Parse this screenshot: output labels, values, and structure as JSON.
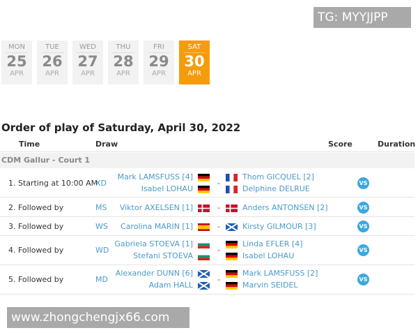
{
  "watermarks": {
    "top": "TG: MYYJJPP",
    "bottom": "www.zhongchengjx66.com"
  },
  "days": [
    {
      "dow": "MON",
      "day": "25",
      "month": "APR",
      "active": false
    },
    {
      "dow": "TUE",
      "day": "26",
      "month": "APR",
      "active": false
    },
    {
      "dow": "WED",
      "day": "27",
      "month": "APR",
      "active": false
    },
    {
      "dow": "THU",
      "day": "28",
      "month": "APR",
      "active": false
    },
    {
      "dow": "FRI",
      "day": "29",
      "month": "APR",
      "active": false
    },
    {
      "dow": "SAT",
      "day": "30",
      "month": "APR",
      "active": true
    }
  ],
  "title": "Order of play of Saturday, April 30, 2022",
  "headers": {
    "time": "Time",
    "draw": "Draw",
    "score": "Score",
    "duration": "Duration"
  },
  "court": "CDM Gallur - Court 1",
  "vs_label": "VS",
  "dash": "-",
  "matches": [
    {
      "time": "1. Starting at 10:00 AM",
      "draw": "XD",
      "team1": [
        {
          "name": "Mark LAMSFUSS [4]",
          "flag": "germany"
        },
        {
          "name": "Isabel LOHAU",
          "flag": "germany"
        }
      ],
      "team2": [
        {
          "name": "Thom GICQUEL [2]",
          "flag": "france"
        },
        {
          "name": "Delphine DELRUE",
          "flag": "france"
        }
      ]
    },
    {
      "time": "2. Followed by",
      "draw": "MS",
      "team1": [
        {
          "name": "Viktor AXELSEN [1]",
          "flag": "denmark"
        }
      ],
      "team2": [
        {
          "name": "Anders ANTONSEN [2]",
          "flag": "denmark"
        }
      ]
    },
    {
      "time": "3. Followed by",
      "draw": "WS",
      "team1": [
        {
          "name": "Carolina MARIN [1]",
          "flag": "spain"
        }
      ],
      "team2": [
        {
          "name": "Kirsty GILMOUR [3]",
          "flag": "scotland"
        }
      ]
    },
    {
      "time": "4. Followed by",
      "draw": "WD",
      "team1": [
        {
          "name": "Gabriela STOEVA [1]",
          "flag": "bulgaria"
        },
        {
          "name": "Stefani STOEVA",
          "flag": "bulgaria"
        }
      ],
      "team2": [
        {
          "name": "Linda EFLER [4]",
          "flag": "germany"
        },
        {
          "name": "Isabel LOHAU",
          "flag": "germany"
        }
      ]
    },
    {
      "time": "5. Followed by",
      "draw": "MD",
      "team1": [
        {
          "name": "Alexander DUNN [6]",
          "flag": "scotland"
        },
        {
          "name": "Adam HALL",
          "flag": "scotland"
        }
      ],
      "team2": [
        {
          "name": "Mark LAMSFUSS [2]",
          "flag": "germany"
        },
        {
          "name": "Marvin SEIDEL",
          "flag": "germany"
        }
      ]
    }
  ]
}
